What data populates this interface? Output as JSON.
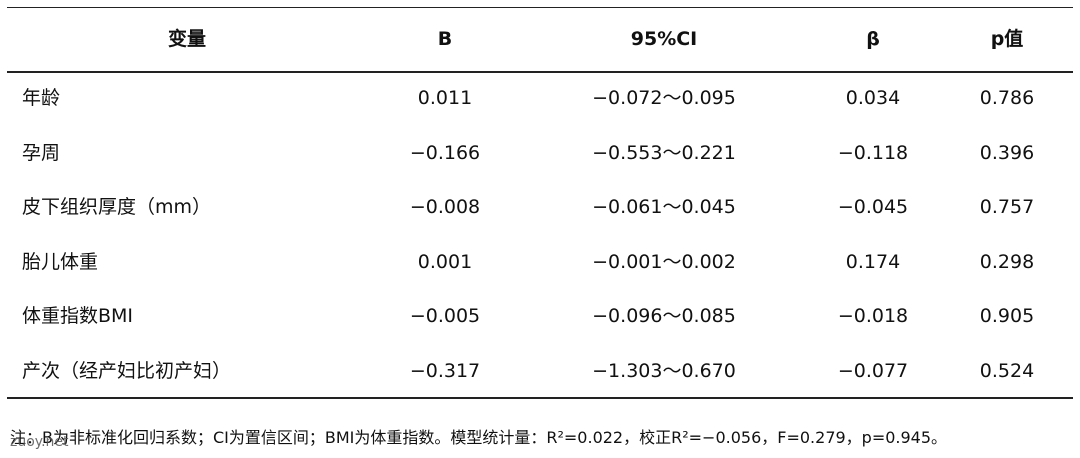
{
  "table": {
    "header": [
      "变量",
      "B",
      "95%CI",
      "β",
      "p值"
    ],
    "rows": [
      [
        "年龄",
        "0.011",
        "−0.072～0.095",
        "0.034",
        "0.786"
      ],
      [
        "孕周",
        "−0.166",
        "−0.553～0.221",
        "−0.118",
        "0.396"
      ],
      [
        "皮下组织厚度（mm）",
        "−0.008",
        "−0.061～0.045",
        "−0.045",
        "0.757"
      ],
      [
        "胎儿体重",
        "0.001",
        "−0.001～0.002",
        "0.174",
        "0.298"
      ],
      [
        "体重指数BMI",
        "−0.005",
        "−0.096～0.085",
        "−0.018",
        "0.905"
      ],
      [
        "产次（经产妇比初产妇）",
        "−0.317",
        "−1.303～0.670",
        "−0.077",
        "0.524"
      ]
    ]
  },
  "note": "注：B为非标准化回归系数；CI为置信区间；BMI为体重指数。模型统计量：R²=0.022，校正R²=−0.056，F=0.279，p=0.945。",
  "watermark": "zuoy.net"
}
